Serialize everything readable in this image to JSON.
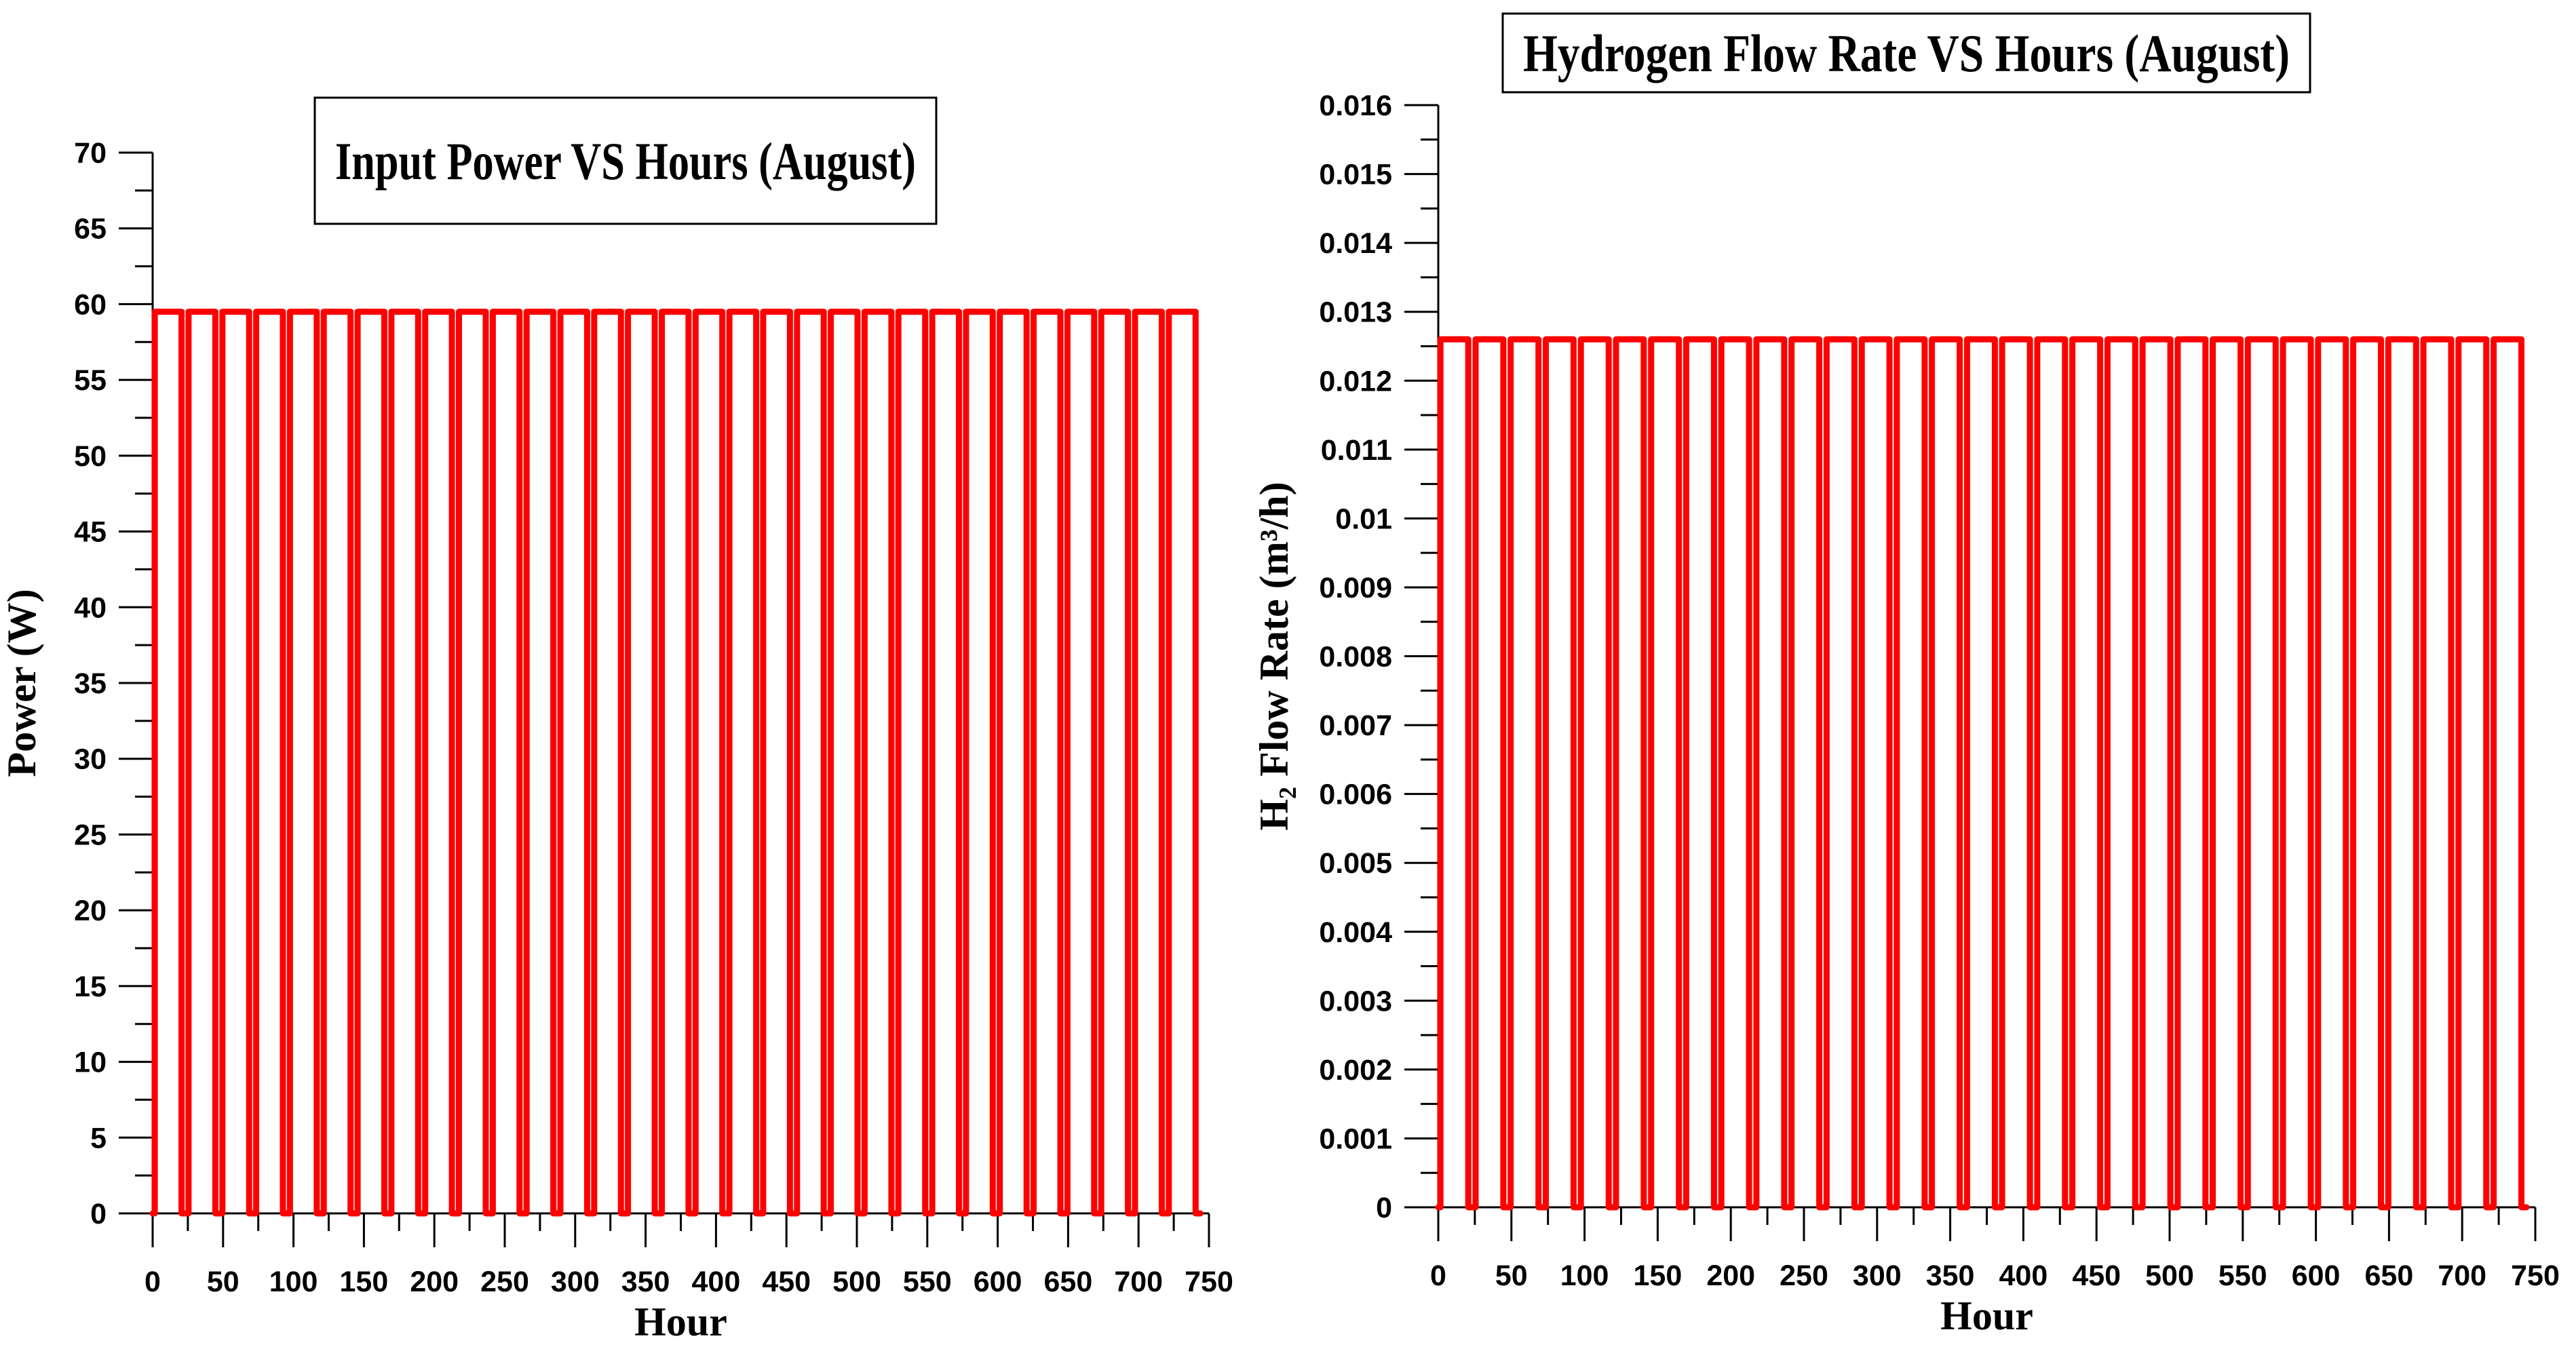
{
  "page": {
    "background": "#ffffff",
    "axis_color": "#000000",
    "text_color": "#000000"
  },
  "chart_data": [
    {
      "type": "line",
      "title": "Input Power VS Hours (August)",
      "xlabel": "Hour",
      "ylabel": "Power  (W)",
      "x_range": [
        0,
        750
      ],
      "y_range": [
        0,
        70
      ],
      "x_major_step": 50,
      "x_minor_step": 25,
      "y_major_step": 5,
      "y_minor_step": 2.5,
      "x_tick_labels": [
        "0",
        "50",
        "100",
        "150",
        "200",
        "250",
        "300",
        "350",
        "400",
        "450",
        "500",
        "550",
        "600",
        "650",
        "700",
        "750"
      ],
      "y_tick_labels": [
        "0",
        "5",
        "10",
        "15",
        "20",
        "25",
        "30",
        "35",
        "40",
        "45",
        "50",
        "55",
        "60",
        "65",
        "70"
      ],
      "grid": false,
      "legend": null,
      "line_color": "#ff0000",
      "waveform": {
        "shape": "daily-square-pulse",
        "days": 31,
        "period_hours": 24,
        "on_start_hour": 1.5,
        "on_end_hour": 20.5,
        "high": 59.5,
        "low": 0,
        "t_start": 0,
        "t_end": 744
      }
    },
    {
      "type": "line",
      "title": "Hydrogen Flow Rate VS Hours (August)",
      "xlabel": "Hour",
      "ylabel": "H₂ Flow Rate (m³/h)",
      "x_range": [
        0,
        750
      ],
      "y_range": [
        0,
        0.016
      ],
      "x_major_step": 50,
      "x_minor_step": 25,
      "y_major_step": 0.001,
      "y_minor_step": 0.0005,
      "x_tick_labels": [
        "0",
        "50",
        "100",
        "150",
        "200",
        "250",
        "300",
        "350",
        "400",
        "450",
        "500",
        "550",
        "600",
        "650",
        "700",
        "750"
      ],
      "y_tick_labels": [
        "0",
        "0.001",
        "0.002",
        "0.003",
        "0.004",
        "0.005",
        "0.006",
        "0.007",
        "0.008",
        "0.009",
        "0.01",
        "0.011",
        "0.012",
        "0.013",
        "0.014",
        "0.015",
        "0.016"
      ],
      "grid": false,
      "legend": null,
      "line_color": "#ff0000",
      "waveform": {
        "shape": "daily-square-pulse",
        "days": 31,
        "period_hours": 24,
        "on_start_hour": 1.5,
        "on_end_hour": 20.5,
        "high": 0.0126,
        "low": 0,
        "t_start": 0,
        "t_end": 744
      }
    }
  ]
}
